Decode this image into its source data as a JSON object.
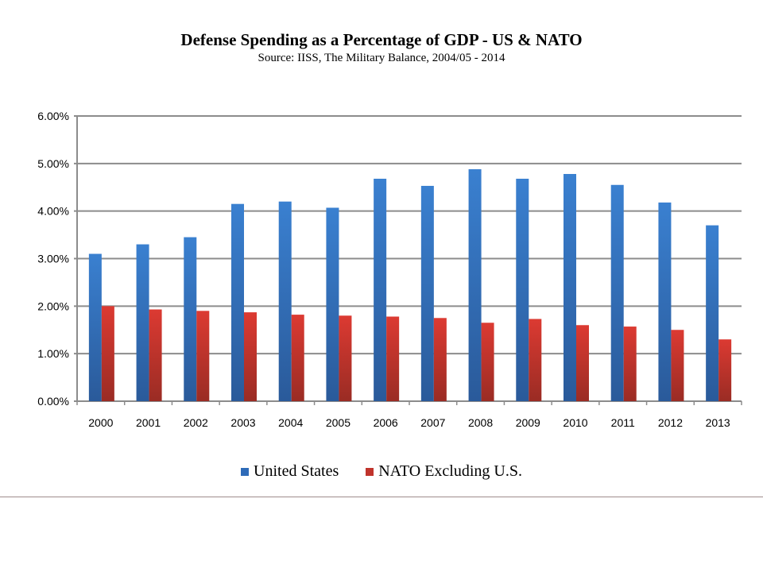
{
  "chart_data": {
    "type": "bar",
    "title": "Defense Spending as a Percentage of GDP - US & NATO",
    "subtitle": "Source: IISS, The Military Balance, 2004/05 - 2014",
    "categories": [
      "2000",
      "2001",
      "2002",
      "2003",
      "2004",
      "2005",
      "2006",
      "2007",
      "2008",
      "2009",
      "2010",
      "2011",
      "2012",
      "2013"
    ],
    "series": [
      {
        "name": "United States",
        "color": "#2e6bb8",
        "values": [
          3.1,
          3.3,
          3.45,
          4.15,
          4.2,
          4.07,
          4.68,
          4.53,
          4.88,
          4.68,
          4.78,
          4.55,
          4.18,
          3.7
        ]
      },
      {
        "name": "NATO Excluding U.S.",
        "color": "#c0342c",
        "values": [
          2.0,
          1.93,
          1.9,
          1.87,
          1.82,
          1.8,
          1.78,
          1.75,
          1.65,
          1.73,
          1.6,
          1.57,
          1.5,
          1.3
        ]
      }
    ],
    "ylim": [
      0,
      6
    ],
    "yticks": [
      "0.00%",
      "1.00%",
      "2.00%",
      "3.00%",
      "4.00%",
      "5.00%",
      "6.00%"
    ],
    "unit": "%",
    "grid": true,
    "legend": "bottom"
  }
}
